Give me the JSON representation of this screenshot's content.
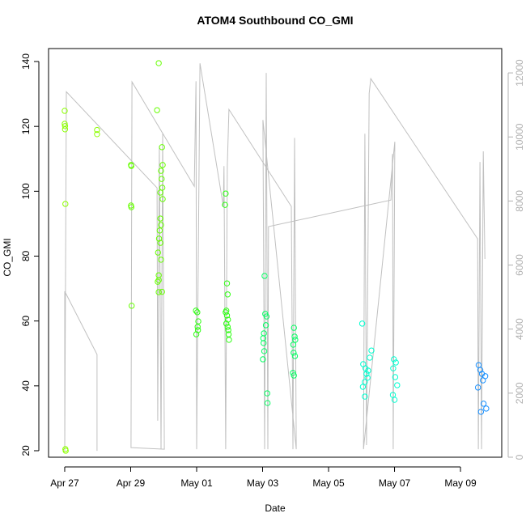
{
  "chart_data": {
    "type": "scatter",
    "title": "ATOM4 Southbound CO_GMI",
    "xlabel": "Date",
    "ylabel": "CO_GMI",
    "xlim": [
      -0.49,
      13.25
    ],
    "xticks": [
      {
        "value": 0,
        "label": "Apr 27"
      },
      {
        "value": 2,
        "label": "Apr 29"
      },
      {
        "value": 4,
        "label": "May 01"
      },
      {
        "value": 6,
        "label": "May 03"
      },
      {
        "value": 8,
        "label": "May 05"
      },
      {
        "value": 10,
        "label": "May 07"
      },
      {
        "value": 12,
        "label": "May 09"
      }
    ],
    "ylim": [
      18,
      144
    ],
    "yticks": [
      20,
      40,
      60,
      80,
      100,
      120,
      140
    ],
    "y2lim": [
      0,
      12760
    ],
    "y2ticks": [
      0,
      2000,
      4000,
      6000,
      8000,
      10000,
      12000
    ],
    "y2color": "#b0b0b0",
    "series": [
      {
        "type": "line",
        "axis": "y2",
        "color": "#c0c0c0",
        "x": [
          0,
          0,
          0.98,
          0.98,
          null,
          0,
          0.05,
          2.8,
          2.82,
          2.87,
          2.92,
          2.97,
          3.02,
          2.01,
          2.04,
          3.93,
          3.98,
          4.0,
          4.1,
          4.81,
          4.83,
          4.88,
          4.93,
          4.98,
          6.87,
          6.92,
          6.97,
          7.02,
          6.01,
          6.06,
          6.11,
          6.16,
          6.18,
          9.89,
          9.94,
          9.96,
          10.01,
          9.06,
          9.1,
          9.15,
          9.23,
          9.28,
          12.52,
          12.54,
          12.59,
          12.64,
          12.69,
          12.74
        ],
        "values": [
          200,
          5180,
          3210,
          200,
          null,
          200,
          11410,
          8410,
          1140,
          9720,
          250,
          10100,
          250,
          300,
          11720,
          8460,
          11740,
          250,
          12300,
          7830,
          9090,
          250,
          9090,
          10860,
          7830,
          250,
          9970,
          250,
          10530,
          250,
          12000,
          250,
          7200,
          8030,
          9470,
          250,
          9850,
          250,
          10100,
          380,
          11360,
          11820,
          6820,
          250,
          9220,
          250,
          9550,
          6190
        ]
      },
      {
        "type": "scatter",
        "color": "#8cff00",
        "x": [
          0,
          0,
          0.01,
          0.01,
          0.02,
          0.02,
          0.03,
          0.98,
          0.98
        ],
        "values": [
          124.8,
          120.8,
          120.1,
          119.1,
          96.1,
          20.5,
          20,
          118.9,
          117.6
        ]
      },
      {
        "type": "scatter",
        "color": "#66ff00",
        "x": [
          2.01,
          2.02,
          2.01,
          2.02,
          2.03,
          2.85,
          2.8,
          2.95,
          2.97,
          2.92,
          2.94,
          2.96,
          2.9,
          2.97,
          2.9,
          2.92,
          2.88,
          2.86,
          2.9,
          2.83,
          2.92,
          2.85,
          2.85,
          2.82,
          2.85,
          2.95
        ],
        "values": [
          108.1,
          107.8,
          95.6,
          95.1,
          64.7,
          139.5,
          125,
          113.6,
          108.1,
          106.3,
          103.8,
          101.1,
          99.6,
          97.6,
          91.6,
          89.6,
          87.9,
          85.4,
          84.1,
          81.1,
          78.9,
          74.1,
          72.6,
          72.1,
          68.9,
          69
        ]
      },
      {
        "type": "scatter",
        "color": "#2cff10",
        "x": [
          3.98,
          4.02,
          4.05,
          4.03,
          4.04,
          3.99,
          4.88,
          4.86,
          4.92,
          4.94,
          4.9,
          4.88,
          4.92,
          4.95,
          4.9,
          4.94,
          4.96,
          4.97,
          4.98
        ],
        "values": [
          63.2,
          62.7,
          59.9,
          58.2,
          57.2,
          55.9,
          99.3,
          95.8,
          71.6,
          68.2,
          63.2,
          62.7,
          61.7,
          60.4,
          59.2,
          58.2,
          57.2,
          55.9,
          54.2
        ]
      },
      {
        "type": "scatter",
        "color": "#00ff60",
        "x": [
          6.06,
          6.08,
          6.12,
          6.1,
          6.04,
          6.02,
          6.03,
          6.05,
          6.01,
          6.14,
          6.15,
          6.95,
          6.97,
          6.99,
          6.93,
          6.94,
          6.98,
          6.92,
          6.95
        ],
        "values": [
          73.9,
          62.2,
          61.4,
          58.7,
          56.2,
          54.7,
          53.2,
          50.7,
          48.2,
          37.7,
          34.7,
          57.9,
          55.2,
          54.2,
          52.7,
          50.2,
          49.2,
          44,
          43.2
        ]
      },
      {
        "type": "scatter",
        "color": "#00ffd0",
        "x": [
          9.02,
          9.3,
          9.25,
          9.05,
          9.12,
          9.2,
          9.15,
          9.18,
          9.1,
          9.04,
          9.1,
          9.98,
          10.04,
          9.96,
          10.02,
          10.08,
          9.95,
          10.0
        ],
        "values": [
          59.2,
          50.9,
          48.7,
          46.7,
          45.4,
          44.7,
          43.7,
          42.5,
          41.2,
          39.7,
          36.7,
          48.2,
          47.2,
          45.4,
          42.7,
          40.2,
          37.2,
          35.7
        ]
      },
      {
        "type": "scatter",
        "color": "#1890ff",
        "x": [
          12.55,
          12.6,
          12.65,
          12.75,
          12.68,
          12.53,
          12.7,
          12.78,
          12.62
        ],
        "values": [
          46.4,
          44.9,
          43.7,
          43,
          41.7,
          39.5,
          34.5,
          33,
          32
        ]
      }
    ]
  }
}
